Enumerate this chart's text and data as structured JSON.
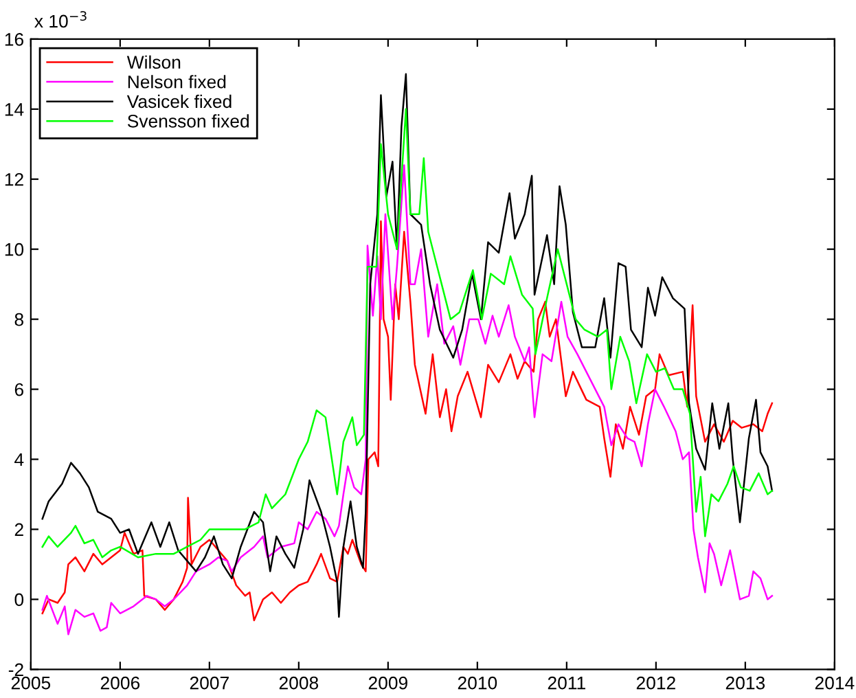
{
  "chart_data": {
    "type": "line",
    "xlim": [
      2005,
      2014
    ],
    "xticks": [
      2005,
      2006,
      2007,
      2008,
      2009,
      2010,
      2011,
      2012,
      2013,
      2014
    ],
    "ylim": [
      -2,
      16
    ],
    "yticks": [
      -2,
      0,
      2,
      4,
      6,
      8,
      10,
      12,
      14,
      16
    ],
    "annotations": [
      "x 10$^{−3}$"
    ],
    "grid": false,
    "legend": "top left",
    "marker": "none",
    "line_style": "solid",
    "series": [
      {
        "name": "Wilson",
        "color": "#ff0000",
        "x": [
          2005.13,
          2005.2,
          2005.3,
          2005.38,
          2005.42,
          2005.5,
          2005.6,
          2005.7,
          2005.8,
          2005.9,
          2006.0,
          2006.05,
          2006.15,
          2006.25,
          2006.27,
          2006.4,
          2006.5,
          2006.6,
          2006.7,
          2006.75,
          2006.76,
          2006.8,
          2006.9,
          2007.0,
          2007.1,
          2007.2,
          2007.3,
          2007.4,
          2007.45,
          2007.5,
          2007.6,
          2007.7,
          2007.8,
          2007.9,
          2008.0,
          2008.1,
          2008.2,
          2008.25,
          2008.35,
          2008.43,
          2008.5,
          2008.55,
          2008.6,
          2008.7,
          2008.75,
          2008.78,
          2008.85,
          2008.89,
          2008.9,
          2008.92,
          2008.95,
          2009.0,
          2009.03,
          2009.08,
          2009.12,
          2009.18,
          2009.25,
          2009.3,
          2009.42,
          2009.5,
          2009.58,
          2009.65,
          2009.71,
          2009.78,
          2009.89,
          2010.04,
          2010.12,
          2010.24,
          2010.37,
          2010.45,
          2010.53,
          2010.63,
          2010.68,
          2010.76,
          2010.81,
          2010.88,
          2010.99,
          2011.07,
          2011.22,
          2011.37,
          2011.42,
          2011.49,
          2011.55,
          2011.63,
          2011.71,
          2011.81,
          2011.89,
          2011.99,
          2012.04,
          2012.14,
          2012.3,
          2012.35,
          2012.41,
          2012.45,
          2012.55,
          2012.65,
          2012.76,
          2012.86,
          2012.96,
          2013.09,
          2013.19,
          2013.25,
          2013.3
        ],
        "values": [
          -0.4,
          0.0,
          -0.1,
          0.2,
          1.0,
          1.2,
          0.8,
          1.3,
          1.0,
          1.2,
          1.4,
          1.9,
          1.3,
          1.4,
          0.1,
          0.0,
          -0.3,
          0.0,
          0.5,
          0.9,
          2.9,
          1.0,
          1.5,
          1.7,
          1.4,
          1.1,
          0.4,
          0.1,
          0.2,
          -0.6,
          0.0,
          0.2,
          -0.1,
          0.2,
          0.4,
          0.5,
          1.0,
          1.3,
          0.6,
          0.5,
          1.5,
          1.3,
          1.7,
          1.0,
          0.8,
          4.0,
          4.2,
          3.8,
          6.0,
          10.8,
          8.0,
          7.5,
          5.7,
          9.0,
          8.0,
          10.5,
          8.5,
          6.7,
          5.3,
          7.0,
          5.2,
          6.0,
          4.8,
          5.8,
          6.5,
          5.2,
          6.7,
          6.2,
          7.0,
          6.3,
          6.8,
          6.5,
          8.0,
          8.5,
          7.5,
          8.0,
          5.8,
          6.5,
          5.7,
          5.5,
          4.6,
          3.5,
          5.0,
          4.3,
          5.5,
          4.7,
          5.8,
          6.0,
          7.0,
          6.4,
          6.5,
          5.5,
          8.4,
          5.8,
          4.5,
          5.0,
          4.5,
          5.1,
          4.9,
          5.0,
          4.8,
          5.3,
          5.6
        ]
      },
      {
        "name": "Nelson fixed",
        "color": "#ff00ff",
        "x": [
          2005.13,
          2005.18,
          2005.3,
          2005.38,
          2005.42,
          2005.5,
          2005.6,
          2005.7,
          2005.78,
          2005.85,
          2005.9,
          2006.0,
          2006.15,
          2006.3,
          2006.4,
          2006.5,
          2006.6,
          2006.75,
          2006.85,
          2007.0,
          2007.1,
          2007.2,
          2007.25,
          2007.35,
          2007.5,
          2007.6,
          2007.65,
          2007.8,
          2007.95,
          2008.0,
          2008.1,
          2008.2,
          2008.3,
          2008.4,
          2008.45,
          2008.5,
          2008.55,
          2008.62,
          2008.7,
          2008.75,
          2008.77,
          2008.83,
          2008.88,
          2008.92,
          2008.97,
          2009.05,
          2009.1,
          2009.18,
          2009.25,
          2009.3,
          2009.37,
          2009.45,
          2009.55,
          2009.63,
          2009.73,
          2009.81,
          2009.91,
          2010.01,
          2010.09,
          2010.17,
          2010.24,
          2010.35,
          2010.42,
          2010.53,
          2010.58,
          2010.64,
          2010.73,
          2010.83,
          2010.94,
          2011.01,
          2011.12,
          2011.22,
          2011.32,
          2011.42,
          2011.5,
          2011.58,
          2011.68,
          2011.76,
          2011.84,
          2011.91,
          2011.99,
          2012.09,
          2012.22,
          2012.3,
          2012.37,
          2012.42,
          2012.47,
          2012.55,
          2012.6,
          2012.65,
          2012.73,
          2012.83,
          2012.94,
          2013.04,
          2013.09,
          2013.17,
          2013.25,
          2013.3
        ],
        "values": [
          -0.3,
          0.1,
          -0.7,
          -0.2,
          -1.0,
          -0.3,
          -0.5,
          -0.4,
          -0.9,
          -0.8,
          -0.1,
          -0.4,
          -0.2,
          0.1,
          0.0,
          -0.2,
          0.0,
          0.4,
          0.8,
          1.0,
          1.2,
          1.1,
          0.8,
          1.2,
          1.5,
          1.8,
          1.2,
          1.5,
          1.6,
          2.2,
          2.0,
          2.5,
          2.3,
          1.8,
          2.1,
          3.0,
          3.8,
          3.2,
          3.0,
          4.0,
          10.1,
          8.1,
          9.8,
          8.0,
          11.0,
          8.0,
          9.5,
          12.4,
          9.0,
          9.0,
          10.0,
          7.5,
          9.0,
          7.3,
          7.8,
          6.7,
          8.0,
          8.0,
          7.3,
          8.1,
          7.5,
          8.4,
          7.5,
          6.8,
          7.2,
          5.2,
          7.0,
          6.8,
          8.5,
          7.5,
          7.0,
          6.5,
          6.0,
          5.5,
          4.4,
          5.0,
          4.6,
          4.5,
          3.8,
          5.0,
          6.0,
          5.5,
          4.8,
          4.0,
          4.2,
          2.0,
          1.2,
          0.2,
          1.6,
          1.3,
          0.4,
          1.4,
          0.0,
          0.1,
          0.8,
          0.6,
          0.0,
          0.1
        ]
      },
      {
        "name": "Vasicek fixed",
        "color": "#000000",
        "x": [
          2005.13,
          2005.2,
          2005.35,
          2005.45,
          2005.55,
          2005.65,
          2005.75,
          2005.9,
          2006.0,
          2006.1,
          2006.2,
          2006.35,
          2006.45,
          2006.55,
          2006.65,
          2006.75,
          2006.85,
          2006.95,
          2007.05,
          2007.15,
          2007.25,
          2007.35,
          2007.5,
          2007.6,
          2007.68,
          2007.75,
          2007.85,
          2007.95,
          2008.05,
          2008.12,
          2008.25,
          2008.35,
          2008.43,
          2008.45,
          2008.5,
          2008.58,
          2008.65,
          2008.72,
          2008.75,
          2008.8,
          2008.88,
          2008.92,
          2008.98,
          2009.05,
          2009.1,
          2009.15,
          2009.2,
          2009.25,
          2009.37,
          2009.47,
          2009.58,
          2009.73,
          2009.83,
          2009.94,
          2010.04,
          2010.12,
          2010.24,
          2010.36,
          2010.42,
          2010.53,
          2010.61,
          2010.64,
          2010.78,
          2010.86,
          2010.92,
          2010.99,
          2011.07,
          2011.17,
          2011.32,
          2011.42,
          2011.49,
          2011.58,
          2011.66,
          2011.72,
          2011.84,
          2011.91,
          2011.99,
          2012.07,
          2012.19,
          2012.32,
          2012.37,
          2012.45,
          2012.55,
          2012.63,
          2012.71,
          2012.81,
          2012.86,
          2012.94,
          2013.04,
          2013.12,
          2013.17,
          2013.25,
          2013.3
        ],
        "values": [
          2.3,
          2.8,
          3.3,
          3.9,
          3.6,
          3.2,
          2.5,
          2.3,
          1.9,
          2.0,
          1.3,
          2.2,
          1.5,
          2.2,
          1.4,
          1.1,
          0.8,
          1.2,
          1.8,
          1.0,
          0.6,
          1.5,
          2.5,
          2.2,
          0.8,
          1.8,
          1.3,
          0.9,
          2.0,
          3.4,
          2.5,
          1.5,
          0.5,
          -0.5,
          1.5,
          2.8,
          1.5,
          0.9,
          2.5,
          9.0,
          11.0,
          14.4,
          11.5,
          12.5,
          10.0,
          13.5,
          15.0,
          11.0,
          10.7,
          9.0,
          7.7,
          6.9,
          7.7,
          9.3,
          8.0,
          10.2,
          9.9,
          11.6,
          10.3,
          11.0,
          12.1,
          8.7,
          10.4,
          9.0,
          11.8,
          10.7,
          8.2,
          7.2,
          7.2,
          8.6,
          6.9,
          9.6,
          9.5,
          7.7,
          7.2,
          8.9,
          8.1,
          9.2,
          8.6,
          8.3,
          5.6,
          4.3,
          3.7,
          5.6,
          4.3,
          5.6,
          4.0,
          2.2,
          4.6,
          5.7,
          4.2,
          3.8,
          3.1
        ]
      },
      {
        "name": "Svensson fixed",
        "color": "#00ff00",
        "x": [
          2005.13,
          2005.2,
          2005.3,
          2005.45,
          2005.5,
          2005.6,
          2005.7,
          2005.8,
          2005.9,
          2006.0,
          2006.2,
          2006.4,
          2006.6,
          2006.75,
          2006.9,
          2007.0,
          2007.2,
          2007.4,
          2007.55,
          2007.63,
          2007.7,
          2007.85,
          2008.0,
          2008.1,
          2008.2,
          2008.3,
          2008.4,
          2008.43,
          2008.5,
          2008.6,
          2008.65,
          2008.73,
          2008.77,
          2008.87,
          2008.92,
          2009.0,
          2009.05,
          2009.1,
          2009.2,
          2009.25,
          2009.35,
          2009.4,
          2009.45,
          2009.55,
          2009.6,
          2009.7,
          2009.8,
          2009.95,
          2010.05,
          2010.15,
          2010.3,
          2010.37,
          2010.5,
          2010.62,
          2010.65,
          2010.78,
          2010.9,
          2011.0,
          2011.1,
          2011.2,
          2011.35,
          2011.45,
          2011.5,
          2011.6,
          2011.7,
          2011.78,
          2011.9,
          2012.0,
          2012.1,
          2012.2,
          2012.3,
          2012.38,
          2012.45,
          2012.5,
          2012.55,
          2012.62,
          2012.7,
          2012.8,
          2012.87,
          2012.95,
          2013.05,
          2013.15,
          2013.25,
          2013.3
        ],
        "values": [
          1.5,
          1.8,
          1.5,
          1.9,
          2.1,
          1.6,
          1.7,
          1.2,
          1.4,
          1.5,
          1.2,
          1.3,
          1.3,
          1.5,
          1.7,
          2.0,
          2.0,
          2.0,
          2.2,
          3.0,
          2.6,
          3.0,
          4.0,
          4.5,
          5.4,
          5.2,
          3.5,
          3.0,
          4.5,
          5.2,
          4.4,
          4.7,
          9.5,
          9.5,
          13.0,
          11.0,
          10.5,
          10.0,
          14.0,
          11.0,
          11.0,
          12.6,
          10.5,
          9.5,
          9.0,
          8.0,
          8.2,
          9.4,
          8.0,
          9.3,
          9.0,
          9.8,
          8.7,
          8.3,
          7.0,
          8.6,
          10.0,
          9.0,
          8.0,
          7.7,
          7.5,
          7.7,
          6.0,
          7.5,
          6.8,
          5.6,
          7.0,
          6.5,
          6.6,
          6.0,
          6.0,
          5.3,
          2.5,
          3.5,
          1.8,
          3.0,
          2.8,
          3.3,
          3.8,
          3.2,
          3.1,
          3.6,
          3.0,
          3.1
        ]
      }
    ]
  }
}
